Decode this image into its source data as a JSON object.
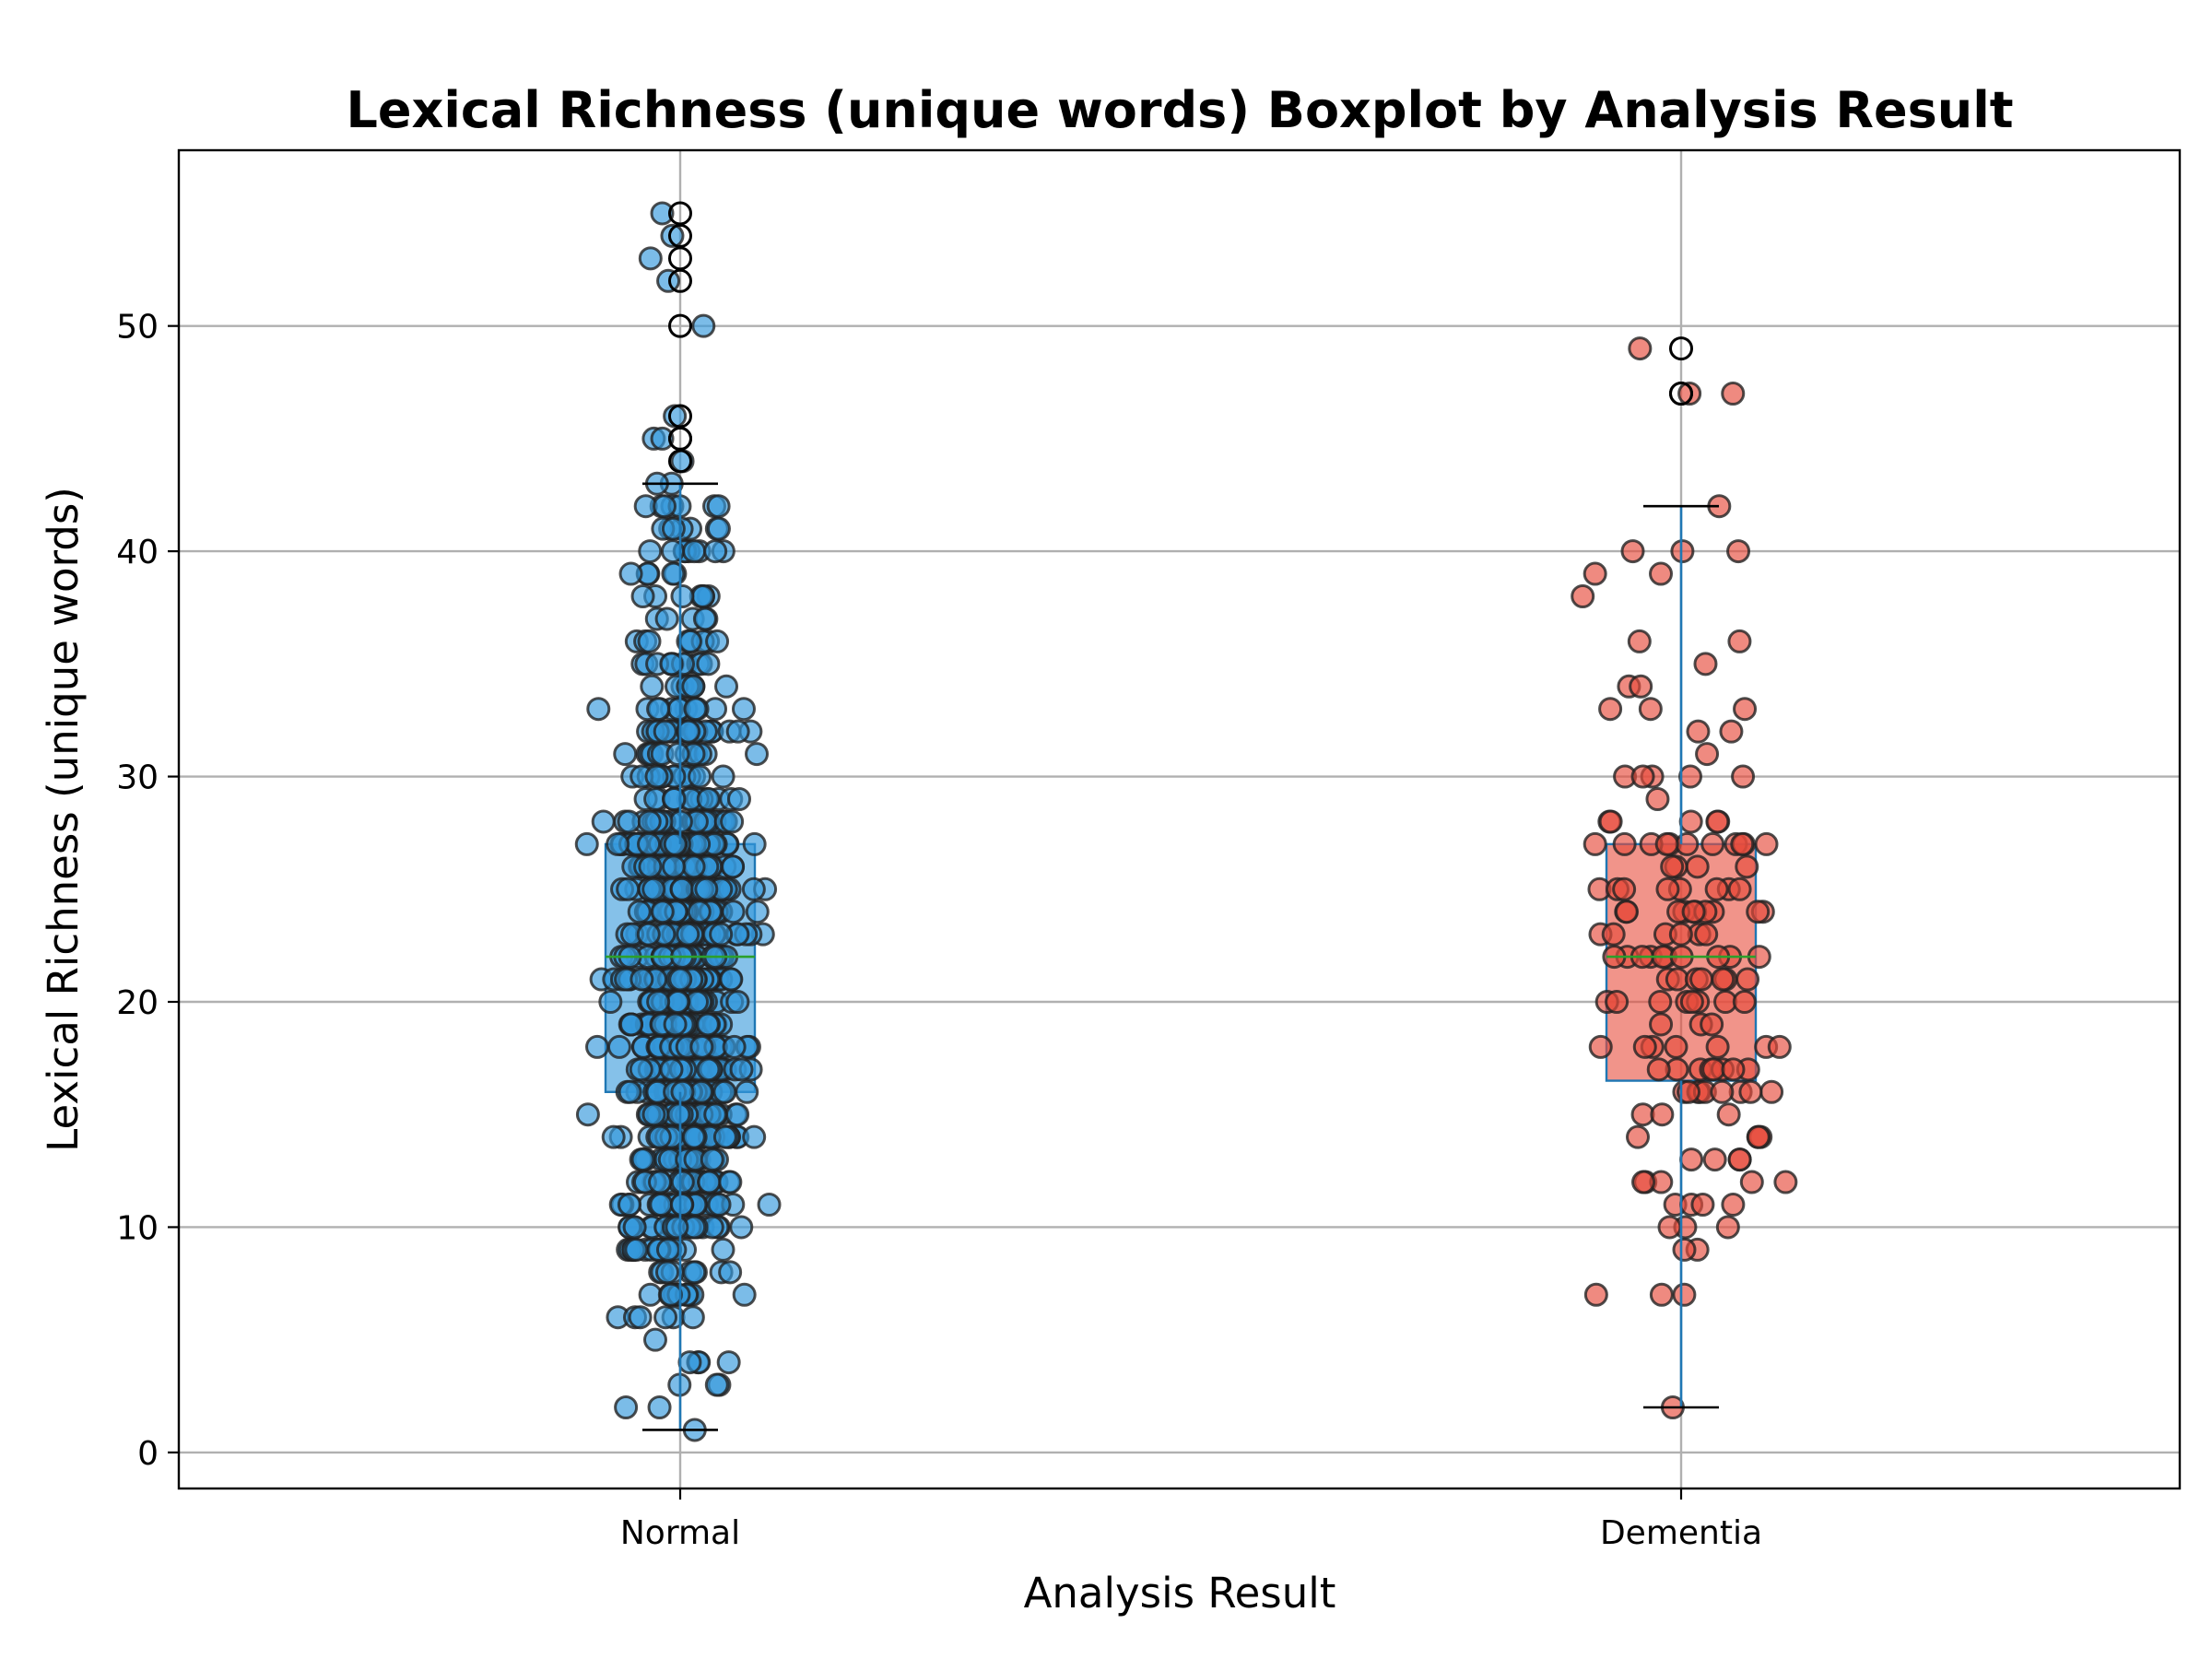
{
  "chart_data": {
    "type": "box",
    "title": "Lexical Richness (unique words) Boxplot by Analysis Result",
    "xlabel": "Analysis Result",
    "ylabel": "Lexical Richness (unique words)",
    "categories": [
      "Normal",
      "Dementia"
    ],
    "ylim": [
      -1.6,
      57.8
    ],
    "yticks": [
      0,
      10,
      20,
      30,
      40,
      50
    ],
    "grid": true,
    "colors": {
      "Normal": "#3498db",
      "Dementia": "#e74c3c",
      "box_edge": "#1f77b4",
      "whisker": "#1f77b4",
      "median": "#2ca02c",
      "cap": "#000000"
    },
    "boxes": [
      {
        "category": "Normal",
        "whisker_low": 1,
        "q1": 16,
        "median": 22,
        "q3": 27,
        "whisker_high": 43,
        "fliers": [
          44,
          45,
          45,
          46,
          50,
          52,
          53,
          54,
          55
        ]
      },
      {
        "category": "Dementia",
        "whisker_low": 2,
        "q1": 16.5,
        "median": 22,
        "q3": 27,
        "whisker_high": 42,
        "fliers": [
          47,
          47,
          49
        ]
      }
    ],
    "points": [
      {
        "category": "Normal",
        "n": 960
      },
      {
        "category": "Dementia",
        "n": 150
      }
    ]
  }
}
